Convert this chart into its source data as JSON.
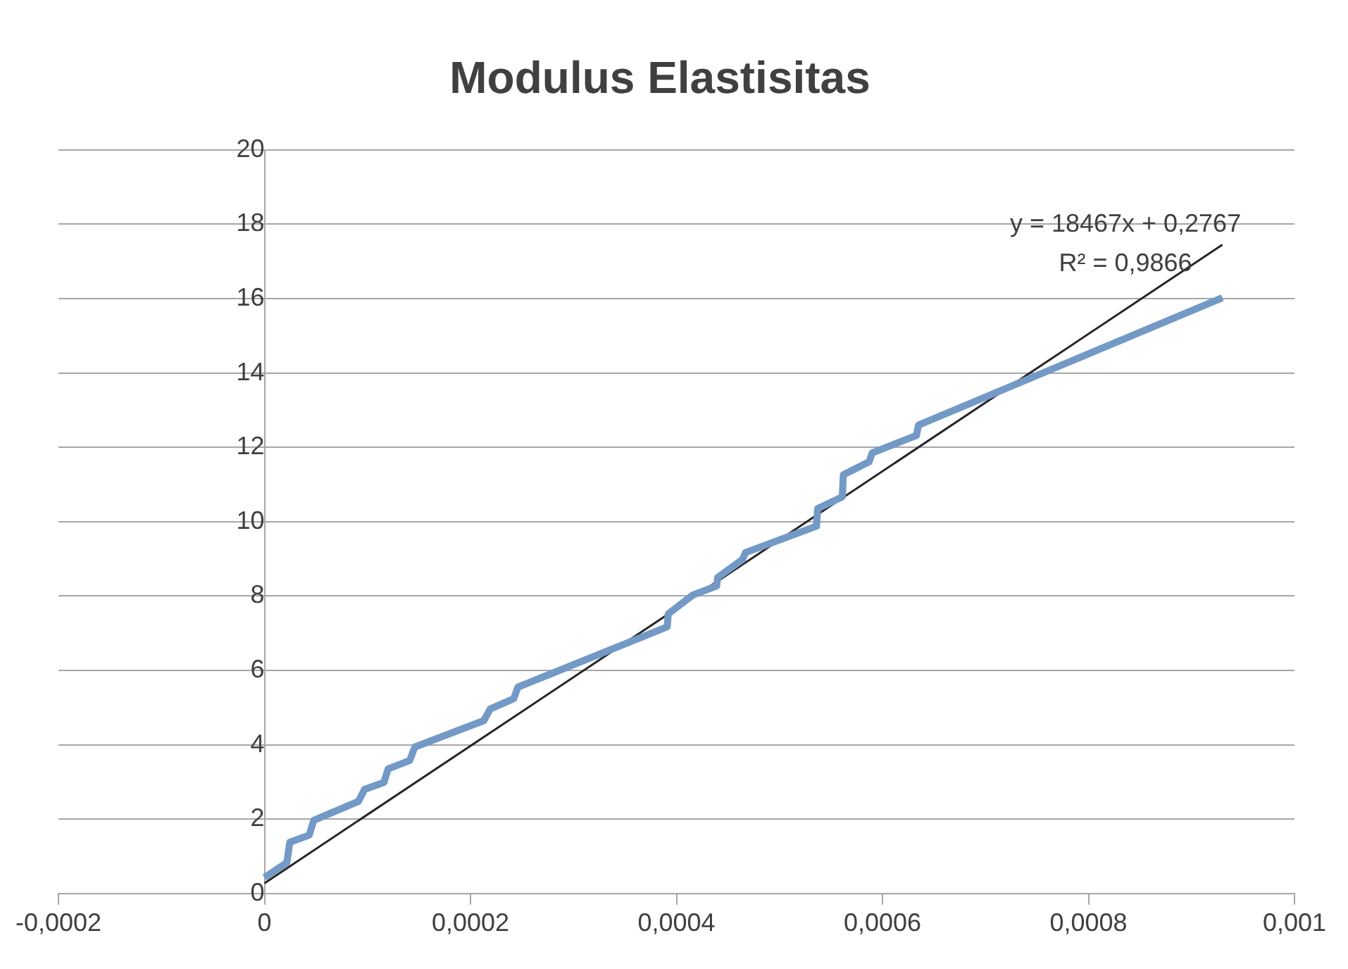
{
  "chart_data": {
    "type": "line",
    "title": "Modulus Elastisitas",
    "series": [
      {
        "color": "#7399c6",
        "x": [
          0,
          2.17e-05,
          2.46e-05,
          4.35e-05,
          4.78e-05,
          9.13e-05,
          9.71e-05,
          0.000116,
          0.00012,
          0.000141,
          0.000146,
          0.000213,
          0.000219,
          0.000242,
          0.000246,
          0.000391,
          0.000392,
          0.000416,
          0.000439,
          0.00044,
          0.000464,
          0.000467,
          0.000536,
          0.000537,
          0.000561,
          0.000562,
          0.000587,
          0.00059,
          0.000633,
          0.000635,
          0.00093
        ],
        "values": [
          0.43,
          0.83,
          1.38,
          1.57,
          1.97,
          2.48,
          2.8,
          2.99,
          3.35,
          3.58,
          3.94,
          4.65,
          4.96,
          5.24,
          5.55,
          7.17,
          7.52,
          8.03,
          8.27,
          8.5,
          8.98,
          9.17,
          9.88,
          10.35,
          10.67,
          11.26,
          11.61,
          11.85,
          12.32,
          12.6,
          16.02
        ]
      },
      {
        "type": "line",
        "color": "#262626",
        "x": [
          0,
          0.00093
        ],
        "values": [
          0.2767,
          17.45
        ]
      }
    ],
    "xlim": [
      -0.0002,
      0.001
    ],
    "xticks": [
      {
        "value": -0.0002,
        "label": "-0,0002"
      },
      0,
      {
        "value": 0.0002,
        "label": "0,0002"
      },
      {
        "value": 0.0004,
        "label": "0,0004"
      },
      {
        "value": 0.0006,
        "label": "0,0006"
      },
      {
        "value": 0.0008,
        "label": "0,0008"
      },
      {
        "value": 0.001,
        "label": "0,001"
      }
    ],
    "ylim": [
      0,
      20
    ],
    "yticks": [
      0,
      2,
      4,
      6,
      8,
      10,
      12,
      14,
      16,
      18,
      20
    ],
    "annotations": [
      "y = 18467x + 0,2767",
      "R² = 0,9866"
    ],
    "grid": "y",
    "legend": false,
    "marker": "none"
  }
}
